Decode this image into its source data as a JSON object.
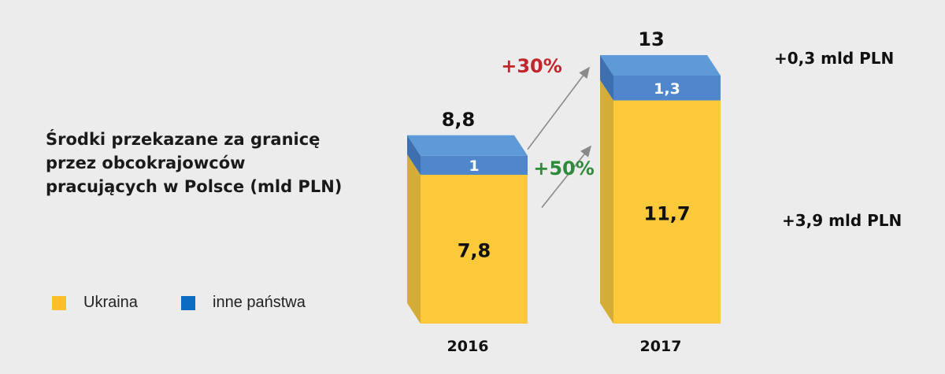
{
  "chart_data": {
    "type": "bar",
    "stacked": true,
    "title": "Środki przekazane za granicę przez obcokrajowców pracujących w Polsce (mld PLN)",
    "categories": [
      "2016",
      "2017"
    ],
    "series": [
      {
        "name": "Ukraina",
        "values": [
          7.8,
          11.7
        ],
        "labels": [
          "7,8",
          "11,7"
        ],
        "color": "#fcc93a",
        "side_color": "#d4ac36"
      },
      {
        "name": "inne państwa",
        "values": [
          1,
          1.3
        ],
        "labels": [
          "1",
          "1,3"
        ],
        "color": "#4f86cc",
        "top_color": "#5e9ad8",
        "side_color": "#3e6fae"
      }
    ],
    "totals": [
      8.8,
      13
    ],
    "total_labels": [
      "8,8",
      "13"
    ],
    "growth": [
      {
        "series": "inne państwa",
        "label": "+30%",
        "color": "#c0262b"
      },
      {
        "series": "Ukraina",
        "label": "+50%",
        "color": "#2e8b3a"
      }
    ],
    "side_notes": [
      {
        "series": "inne państwa",
        "label": "+0,3 mld PLN"
      },
      {
        "series": "Ukraina",
        "label": "+3,9 mld PLN"
      }
    ],
    "legend": {
      "position": "bottom-left",
      "items": [
        {
          "label": "Ukraina",
          "color": "#fbbf2a"
        },
        {
          "label": "inne państwa",
          "color": "#0b6cc2"
        }
      ]
    },
    "ylim": [
      0,
      13
    ],
    "grid": false
  }
}
